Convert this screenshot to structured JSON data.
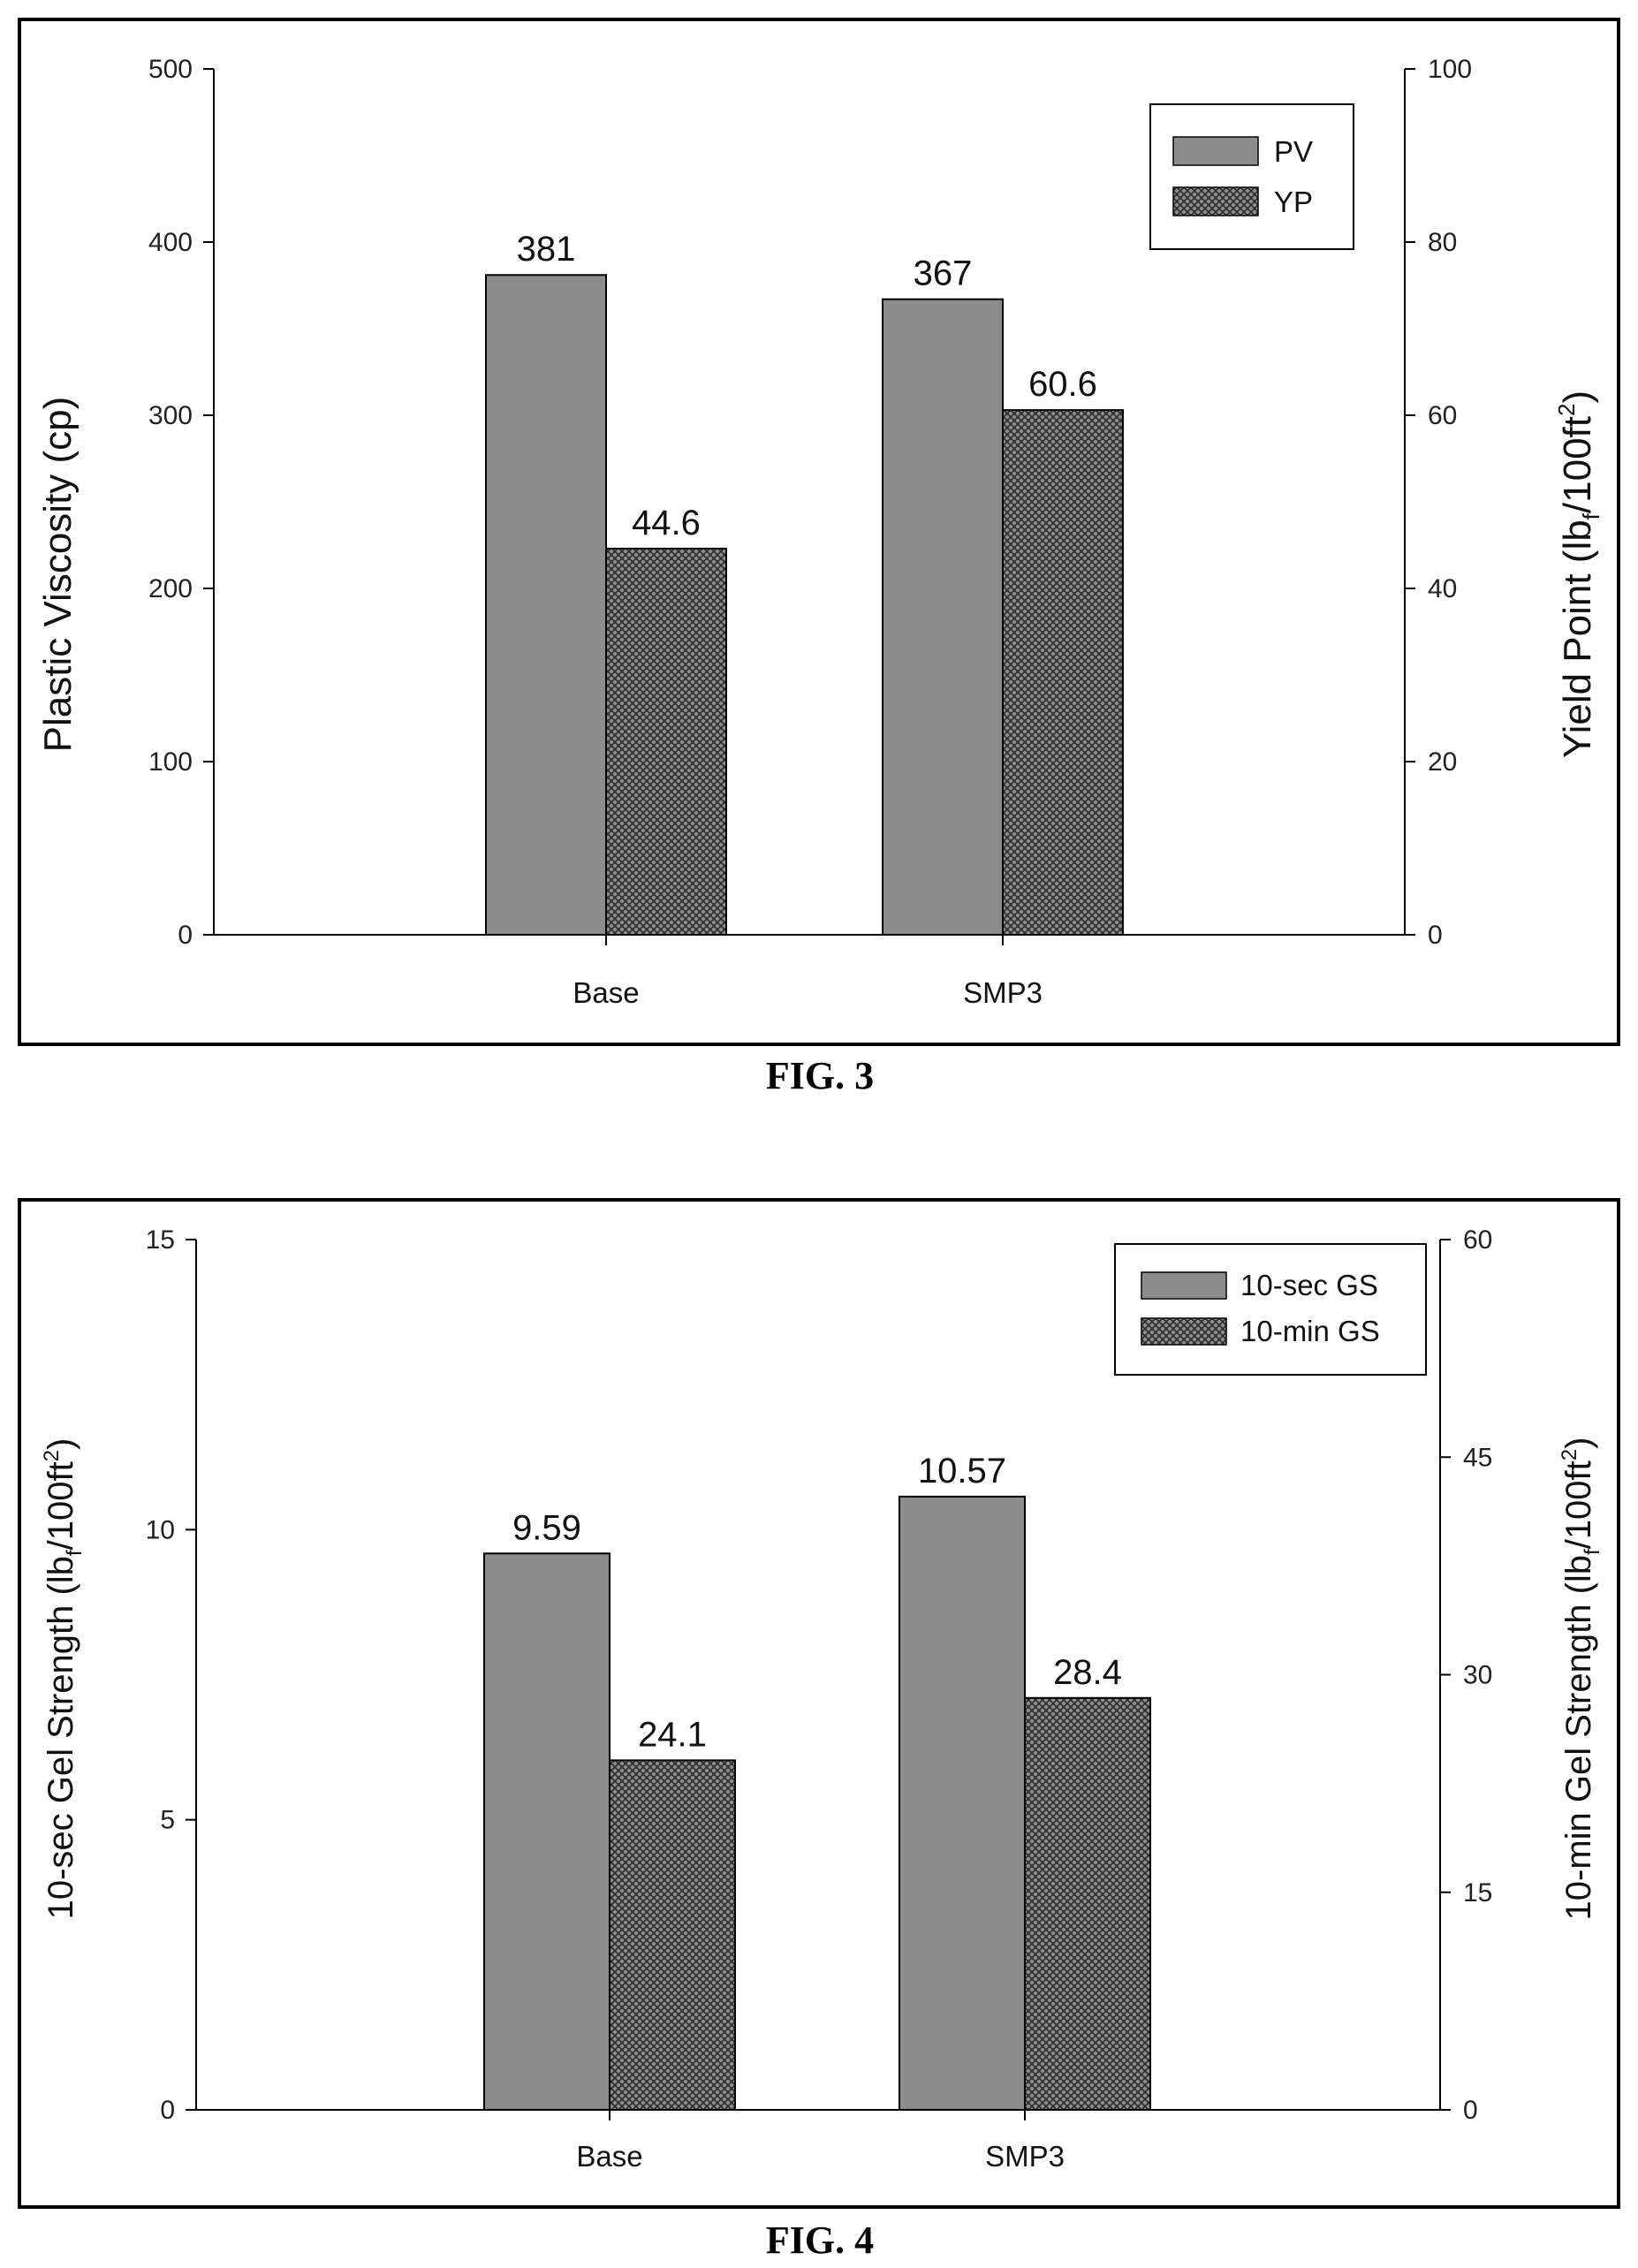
{
  "chart_data": [
    {
      "type": "bar",
      "caption": "FIG. 3",
      "categories": [
        "Base",
        "SMP3"
      ],
      "ylabel": "Plastic Viscosity (cp)",
      "y2label": {
        "prefix": "Yield Point (lb",
        "sub": "f",
        "mid": "/100ft",
        "sup": "2",
        "suffix": ")"
      },
      "ylim": [
        0,
        500
      ],
      "y2lim": [
        0,
        100
      ],
      "yticks": [
        "0",
        "100",
        "200",
        "300",
        "400",
        "500"
      ],
      "y2ticks": [
        "0",
        "20",
        "40",
        "60",
        "80",
        "100"
      ],
      "legend_position": "top-right",
      "series": [
        {
          "name": "PV",
          "axis": "left",
          "values": [
            381,
            367
          ],
          "labels": [
            "381",
            "367"
          ],
          "fill": "solid-gray"
        },
        {
          "name": "YP",
          "axis": "right",
          "values": [
            44.6,
            60.6
          ],
          "labels": [
            "44.6",
            "60.6"
          ],
          "fill": "crosshatch"
        }
      ]
    },
    {
      "type": "bar",
      "caption": "FIG. 4",
      "categories": [
        "Base",
        "SMP3"
      ],
      "ylabel": {
        "prefix": "10-sec Gel Strength (lb",
        "sub": "f",
        "mid": "/100ft",
        "sup": "2",
        "suffix": ")"
      },
      "y2label": {
        "prefix": "10-min Gel Strength (lb",
        "sub": "f",
        "mid": "/100ft",
        "sup": "2",
        "suffix": ")"
      },
      "ylim": [
        0,
        15
      ],
      "y2lim": [
        0,
        60
      ],
      "yticks": [
        "0",
        "5",
        "10",
        "15"
      ],
      "y2ticks": [
        "0",
        "15",
        "30",
        "45",
        "60"
      ],
      "legend_position": "top-right",
      "series": [
        {
          "name": "10-sec GS",
          "axis": "left",
          "values": [
            9.59,
            10.57
          ],
          "labels": [
            "9.59",
            "10.57"
          ],
          "fill": "solid-gray"
        },
        {
          "name": "10-min GS",
          "axis": "right",
          "values": [
            24.1,
            28.4
          ],
          "labels": [
            "24.1",
            "28.4"
          ],
          "fill": "crosshatch"
        }
      ]
    }
  ]
}
